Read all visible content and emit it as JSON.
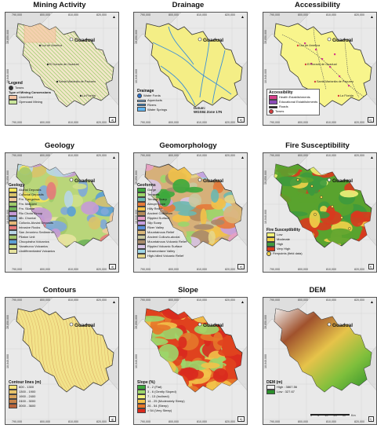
{
  "panels": [
    {
      "key": "mining",
      "title": "Mining Activity",
      "badge": "a)",
      "fill": "#f2e6c9",
      "legend": {
        "title": "Legend",
        "items": [
          {
            "label": "Towns",
            "color": "#333333",
            "kind": "dot"
          }
        ],
        "subtitle": "Type of Mining Concessions",
        "items2": [
          {
            "label": "Undefined",
            "color": "#f7c6a4"
          },
          {
            "label": "Opencast Mining",
            "color": "#c9e59a"
          }
        ]
      }
    },
    {
      "key": "drainage",
      "title": "Drainage",
      "badge": "b)",
      "fill": "#f4ee86",
      "legend": {
        "title": "Drainage",
        "items": [
          {
            "label": "Water Fords",
            "color": "#2a6fc9",
            "kind": "dot"
          },
          {
            "label": "Aqueducts",
            "color": "#7fb8e8",
            "kind": "line"
          },
          {
            "label": "Rivers",
            "color": "#3a8fd9",
            "kind": "line"
          },
          {
            "label": "Water Springs",
            "color": "#5fb4f0",
            "kind": "box"
          }
        ]
      },
      "datum": "Datum:",
      "zone": "WGS84 Zone 17N"
    },
    {
      "key": "access",
      "title": "Accessibility",
      "badge": "c)",
      "fill": "#f8f58c",
      "legend": {
        "title": "Accessibility",
        "items": [
          {
            "label": "Health Establishments",
            "color": "#d63e8a",
            "kind": "box"
          },
          {
            "label": "Educational Establishments",
            "color": "#8a4bb8",
            "kind": "box"
          },
          {
            "label": "Roads",
            "color": "#222222",
            "kind": "line"
          },
          {
            "label": "Towns",
            "color": "#d63e3e",
            "kind": "dot"
          }
        ]
      }
    },
    {
      "key": "geology",
      "title": "Geology",
      "badge": "d)",
      "fill": "#b9d67a",
      "legend": {
        "title": "Geology",
        "items": [
          {
            "label": "Aluvial Deposits",
            "color": "#f5e65a"
          },
          {
            "label": "Colluvial Deposits",
            "color": "#d9c36a"
          },
          {
            "label": "Fm. Cangahua",
            "color": "#f2c99a"
          },
          {
            "label": "Fm. Macuchi",
            "color": "#9fcb6b"
          },
          {
            "label": "Fm. Silante",
            "color": "#6fb35a"
          },
          {
            "label": "Rio Chota Group",
            "color": "#c69bd6"
          },
          {
            "label": "Mb. Chontal",
            "color": "#7fa8d9"
          },
          {
            "label": "Colluvio-Aluvial Deposits",
            "color": "#e6b878"
          },
          {
            "label": "Intrusive Rocks",
            "color": "#e67a7a"
          },
          {
            "label": "San Jeronimo Sediments",
            "color": "#b8d6e6"
          },
          {
            "label": "Pilaton Unit",
            "color": "#a3c76a"
          },
          {
            "label": "Chuquiraha Volcanics",
            "color": "#5a9fd6"
          },
          {
            "label": "Yanahurco Volcanics",
            "color": "#cfe08a"
          },
          {
            "label": "Undifferentiated Volcanics",
            "color": "#e8e4a0"
          }
        ]
      }
    },
    {
      "key": "geomorph",
      "title": "Geomorphology",
      "badge": "e)",
      "fill": "#d6b07a",
      "legend": {
        "title": "Geoforms",
        "items": [
          {
            "label": "Gorge",
            "color": "#3ca83c"
          },
          {
            "label": "Terraces",
            "color": "#9cd66a"
          },
          {
            "label": "Terrace Scarp",
            "color": "#6bb8b0"
          },
          {
            "label": "Abrupt Slope",
            "color": "#e67a3a"
          },
          {
            "label": "Hilly Relief",
            "color": "#f2c24a"
          },
          {
            "label": "Ancient Colluvium",
            "color": "#b48a5a"
          },
          {
            "label": "Rippled Surface",
            "color": "#e6a0c8"
          },
          {
            "label": "Slip Scarp",
            "color": "#c8a0e0"
          },
          {
            "label": "River Valley",
            "color": "#5a8fd9"
          },
          {
            "label": "Mountainous Relief",
            "color": "#d9b87a"
          },
          {
            "label": "Ancient Colluvio-aluvial",
            "color": "#c9c9a0"
          },
          {
            "label": "Mountainous Volcanic Relief",
            "color": "#a88a6a"
          },
          {
            "label": "Rippled Volcanic Surface",
            "color": "#d9c6e6"
          },
          {
            "label": "Intramontane Valley",
            "color": "#9fd6e6"
          },
          {
            "label": "High-hilled Volcanic Relief",
            "color": "#e6d68a"
          }
        ]
      }
    },
    {
      "key": "fire",
      "title": "Fire Susceptibility",
      "badge": "f)",
      "fill": "#59a32e",
      "legend": {
        "title": "Fire Susceptibility",
        "items": [
          {
            "label": "Low",
            "color": "#f2f27a"
          },
          {
            "label": "Moderate",
            "color": "#f2d24a"
          },
          {
            "label": "High",
            "color": "#3d9a3d"
          },
          {
            "label": "Very High",
            "color": "#d93a1e"
          },
          {
            "label": "Firepoints (field data)",
            "color": "#f2d24a",
            "kind": "dot"
          }
        ]
      }
    },
    {
      "key": "contours",
      "title": "Contours",
      "badge": "g)",
      "fill": "#f2e38a",
      "legend": {
        "title": "Contour lines (m)",
        "items": [
          {
            "label": "600 - 1300",
            "color": "#f7e37a"
          },
          {
            "label": "1300 - 1900",
            "color": "#e6c36a"
          },
          {
            "label": "1900 - 2400",
            "color": "#d9a35a"
          },
          {
            "label": "2400 - 3000",
            "color": "#c8834a"
          },
          {
            "label": "3000 - 3600",
            "color": "#b8633a"
          }
        ]
      }
    },
    {
      "key": "slope",
      "title": "Slope",
      "badge": "h)",
      "fill": "#e0421e",
      "legend": {
        "title": "Slope (%)",
        "items": [
          {
            "label": "0 - 2 (Flat)",
            "color": "#3ca83c"
          },
          {
            "label": "3 - 6 (Gently Sloped)",
            "color": "#9cd66a"
          },
          {
            "label": "7 - 13 (Inclined)",
            "color": "#f2f27a"
          },
          {
            "label": "14 - 25 (Moderately Steep)",
            "color": "#f2c24a"
          },
          {
            "label": "26 - 54 (Steep)",
            "color": "#e6782a"
          },
          {
            "label": "> 54 (Very Steep)",
            "color": "#d92a1e"
          }
        ]
      }
    },
    {
      "key": "dem",
      "title": "DEM",
      "badge": "i)",
      "fill": "#3c9a3c",
      "legend": {
        "title": "DEM (m)",
        "items": [
          {
            "label": "High : 3867.56",
            "color": "#f0f0f0"
          },
          {
            "label": "Low : 327.67",
            "color": "#2a8f2a"
          }
        ]
      },
      "scale": [
        "0",
        "5",
        "10",
        "20",
        "30"
      ],
      "scale_unit": "Km"
    }
  ],
  "coords": {
    "x": [
      "790,000",
      "800,000",
      "810,000",
      "820,000"
    ],
    "y": [
      "10,050,000",
      "10,040,000"
    ]
  },
  "town": "Guadual",
  "mining_towns": [
    "Luz de America",
    "El Dorado de Guadual",
    "Santa Marianita de Pacureo",
    "La Florida"
  ],
  "access_towns": [
    "Luz de America",
    "El Dorado de Guadual",
    "Santa Marianita de Pacureo",
    "La Florida"
  ]
}
